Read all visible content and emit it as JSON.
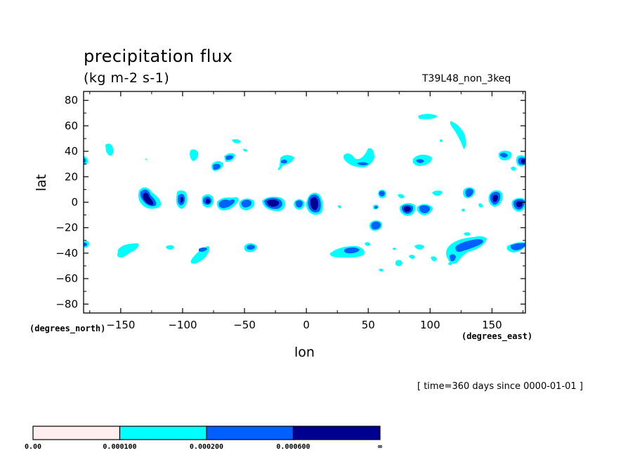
{
  "chart_data": {
    "type": "heatmap",
    "title": "precipitation flux",
    "subtitle": "(kg m-2 s-1)",
    "experiment": "T39L48_non_3keq",
    "time_label": "[ time=360 days since 0000-01-01 ]",
    "xlabel": "lon",
    "ylabel": "lat",
    "x_unit_label": "(degrees_east)",
    "y_unit_label": "(degrees_north)",
    "xlim": [
      -180,
      177
    ],
    "ylim": [
      -87,
      87
    ],
    "x_ticks": [
      -150,
      -100,
      -50,
      0,
      50,
      100,
      150
    ],
    "x_tick_labels": [
      "−150",
      "−100",
      "−50",
      "0",
      "50",
      "100",
      "150"
    ],
    "y_ticks": [
      80,
      60,
      40,
      20,
      0,
      -20,
      -40,
      -60,
      -80
    ],
    "y_tick_labels": [
      "80",
      "60",
      "40",
      "20",
      "0",
      "−20",
      "−40",
      "−60",
      "−80"
    ],
    "levels": [
      "0.00",
      "0.000100",
      "0.000200",
      "0.000600",
      "∞"
    ],
    "colors": [
      "#ffeeee",
      "#00ffff",
      "#0060ff",
      "#000090"
    ],
    "cells": [
      {
        "lon": -129,
        "lat": 4,
        "level": 3
      },
      {
        "lon": -125,
        "lat": -1,
        "level": 3
      },
      {
        "lon": -100,
        "lat": 2,
        "level": 2
      },
      {
        "lon": -80,
        "lat": 1,
        "level": 3
      },
      {
        "lon": -66,
        "lat": -2,
        "level": 2
      },
      {
        "lon": -58,
        "lat": 1,
        "level": 2
      },
      {
        "lon": -45,
        "lat": -2,
        "level": 2
      },
      {
        "lon": -27,
        "lat": 0,
        "level": 3
      },
      {
        "lon": -20,
        "lat": -1,
        "level": 3
      },
      {
        "lon": -3,
        "lat": 0,
        "level": 2
      },
      {
        "lon": 7,
        "lat": -1,
        "level": 3
      },
      {
        "lon": 82,
        "lat": -5,
        "level": 3
      },
      {
        "lon": 97,
        "lat": -5,
        "level": 2
      },
      {
        "lon": 130,
        "lat": 8,
        "level": 2
      },
      {
        "lon": 152,
        "lat": 4,
        "level": 3
      },
      {
        "lon": 174,
        "lat": -2,
        "level": 3
      },
      {
        "lon": 56,
        "lat": -18,
        "level": 2
      },
      {
        "lon": 63,
        "lat": 6,
        "level": 2
      },
      {
        "lon": 57,
        "lat": -4,
        "level": 2
      },
      {
        "lon": -73,
        "lat": 27,
        "level": 2
      },
      {
        "lon": -63,
        "lat": 35,
        "level": 2
      },
      {
        "lon": -15,
        "lat": 32,
        "level": 2
      },
      {
        "lon": 47,
        "lat": 30,
        "level": 2
      },
      {
        "lon": 92,
        "lat": 32,
        "level": 2
      },
      {
        "lon": 163,
        "lat": 37,
        "level": 2
      },
      {
        "lon": 176,
        "lat": 32,
        "level": 2
      },
      {
        "lon": -180,
        "lat": 33,
        "level": 2
      },
      {
        "lon": -82,
        "lat": -38,
        "level": 2
      },
      {
        "lon": -44,
        "lat": -36,
        "level": 2
      },
      {
        "lon": 38,
        "lat": -38,
        "level": 2
      },
      {
        "lon": 135,
        "lat": -34,
        "level": 2
      },
      {
        "lon": 120,
        "lat": -44,
        "level": 2
      },
      {
        "lon": 175,
        "lat": -36,
        "level": 2
      }
    ]
  }
}
